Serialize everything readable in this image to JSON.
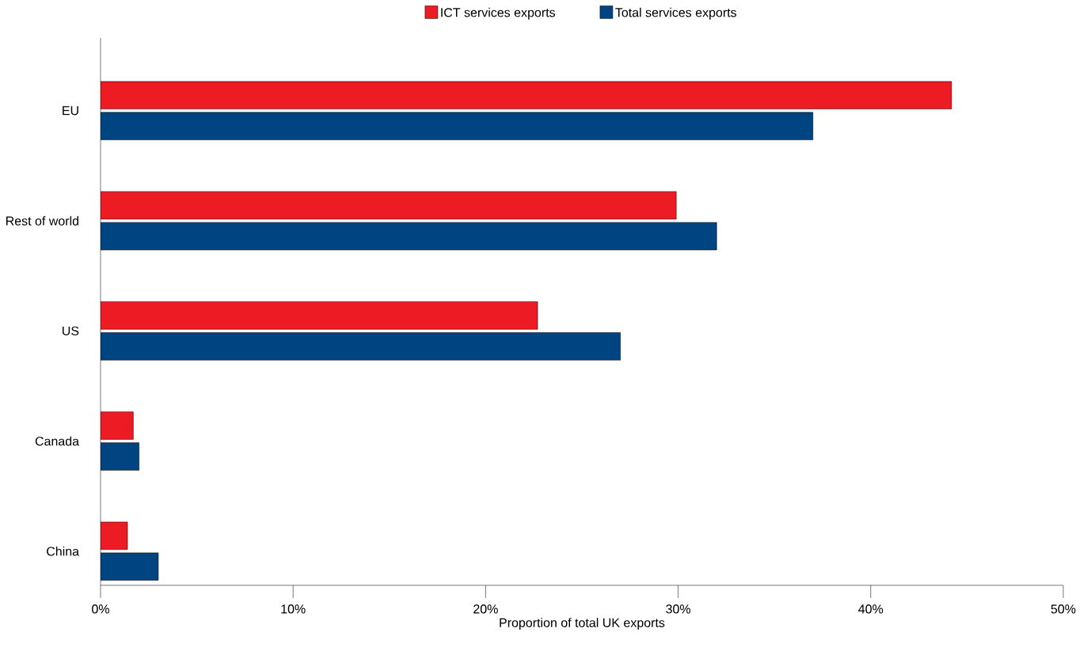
{
  "chart_data": {
    "type": "bar",
    "orientation": "horizontal",
    "xlabel": "Proportion of total UK exports",
    "categories": [
      "EU",
      "Rest of world",
      "US",
      "Canada",
      "China"
    ],
    "series": [
      {
        "name": "ICT services exports",
        "color": "#ed1c24",
        "values": [
          44.2,
          29.9,
          22.7,
          1.7,
          1.4
        ]
      },
      {
        "name": "Total services exports",
        "color": "#004481",
        "values": [
          37.0,
          32.0,
          27.0,
          2.0,
          3.0
        ]
      }
    ],
    "xlim": [
      0,
      50
    ],
    "xticks": [
      {
        "value": 0,
        "label": "0%"
      },
      {
        "value": 10,
        "label": "10%"
      },
      {
        "value": 20,
        "label": "20%"
      },
      {
        "value": 30,
        "label": "30%"
      },
      {
        "value": 40,
        "label": "40%"
      },
      {
        "value": 50,
        "label": "50%"
      }
    ],
    "legend": "top",
    "grid": false
  }
}
